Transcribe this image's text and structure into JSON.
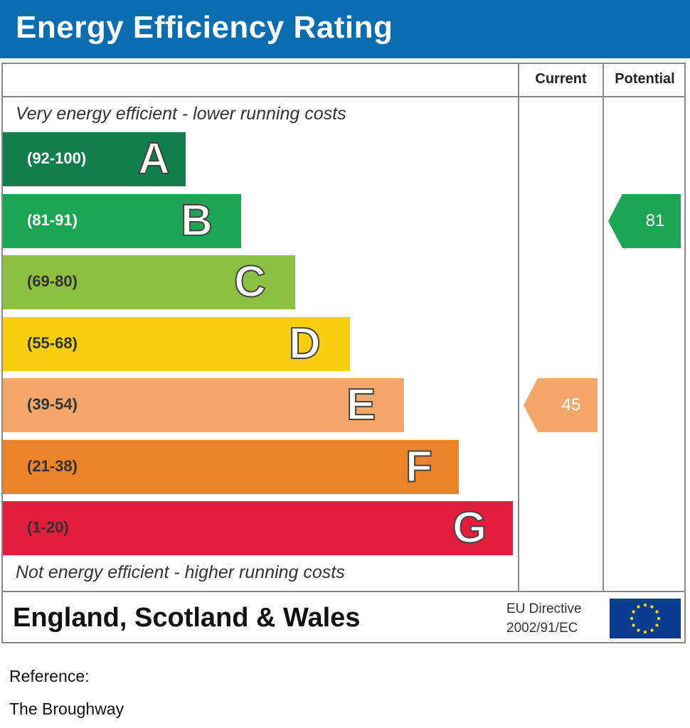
{
  "header": {
    "title": "Energy Efficiency Rating"
  },
  "columns": {
    "current": "Current",
    "potential": "Potential"
  },
  "captions": {
    "top": "Very energy efficient - lower running costs",
    "bottom": "Not energy efficient - higher running costs"
  },
  "chart_data": {
    "type": "bar",
    "title": "Energy Efficiency Rating",
    "categories": [
      "A",
      "B",
      "C",
      "D",
      "E",
      "F",
      "G"
    ],
    "bands": [
      {
        "letter": "A",
        "range": "(92-100)",
        "min": 92,
        "max": 100,
        "color": "#137d4c"
      },
      {
        "letter": "B",
        "range": "(81-91)",
        "min": 81,
        "max": 91,
        "color": "#1ea553"
      },
      {
        "letter": "C",
        "range": "(69-80)",
        "min": 69,
        "max": 80,
        "color": "#8dbf43"
      },
      {
        "letter": "D",
        "range": "(55-68)",
        "min": 55,
        "max": 68,
        "color": "#f7ce12"
      },
      {
        "letter": "E",
        "range": "(39-54)",
        "min": 39,
        "max": 54,
        "color": "#f2a86a"
      },
      {
        "letter": "F",
        "range": "(21-38)",
        "min": 21,
        "max": 38,
        "color": "#ec8328"
      },
      {
        "letter": "G",
        "range": "(1-20)",
        "min": 1,
        "max": 20,
        "color": "#e31d3c"
      }
    ],
    "current": {
      "value": "45",
      "band": "E",
      "color": "#f2a86a"
    },
    "potential": {
      "value": "81",
      "band": "B",
      "color": "#1ea553"
    }
  },
  "footer": {
    "country": "England, Scotland & Wales",
    "directive_line1": "EU Directive",
    "directive_line2": "2002/91/EC",
    "flag_icon": "eu-flag-icon"
  },
  "reference": {
    "label": "Reference:",
    "value": "The Broughway"
  }
}
